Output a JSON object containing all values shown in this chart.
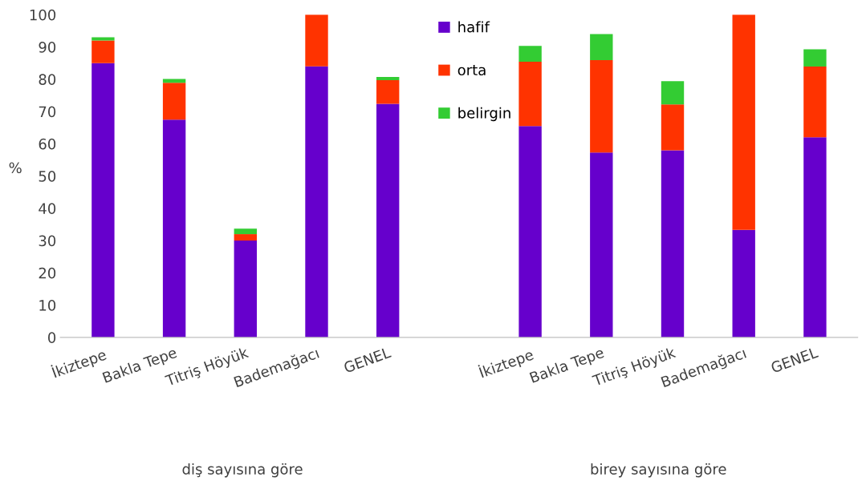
{
  "chart_data": {
    "type": "bar",
    "stacked": true,
    "ylabel": "%",
    "categories": [
      "İkiztepe",
      "Bakla Tepe",
      "Titriş Höyük",
      "Bademağacı",
      "GENEL",
      null,
      "İkiztepe",
      "Bakla Tepe",
      "Titriş Höyük",
      "Bademağacı",
      "GENEL"
    ],
    "series": [
      {
        "name": "hafif",
        "color": "#6600cc",
        "values": [
          85,
          67.5,
          30,
          84,
          72.4,
          null,
          65.5,
          57.3,
          58,
          33.3,
          62
        ]
      },
      {
        "name": "orta",
        "color": "#ff3300",
        "values": [
          7,
          11.4,
          2,
          16,
          7.3,
          null,
          19.9,
          28.6,
          14.2,
          66.7,
          21.9
        ]
      },
      {
        "name": "belirgin",
        "color": "#33cc33",
        "values": [
          1,
          1.2,
          1.7,
          0,
          1,
          null,
          4.9,
          8.1,
          7.2,
          0,
          5.4
        ]
      }
    ],
    "ylim": [
      0,
      100
    ],
    "yticks": [
      0,
      10,
      20,
      30,
      40,
      50,
      60,
      70,
      80,
      90,
      100
    ],
    "grid": false,
    "legend": "top",
    "annotations": [
      "diş sayısına göre",
      "birey sayısına göre"
    ]
  }
}
